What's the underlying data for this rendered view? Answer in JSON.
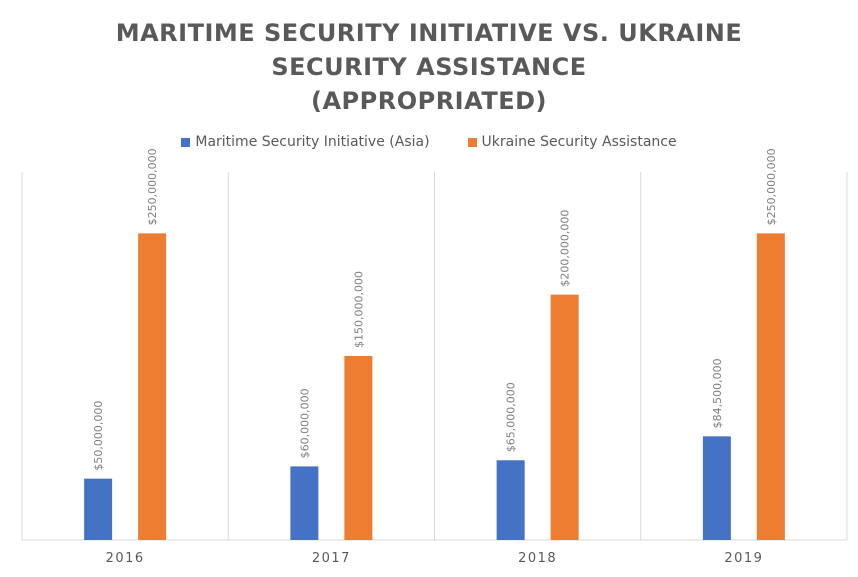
{
  "chart_data": {
    "type": "bar",
    "title_lines": [
      "MARITIME SECURITY INITIATIVE VS. UKRAINE",
      "SECURITY ASSISTANCE",
      "(APPROPRIATED)"
    ],
    "xlabel": "",
    "ylabel": "",
    "categories": [
      "2016",
      "2017",
      "2018",
      "2019"
    ],
    "series": [
      {
        "name": "Maritime Security Initiative (Asia)",
        "color": "#4472C4",
        "values": [
          50000000,
          60000000,
          65000000,
          84500000
        ],
        "labels": [
          "$50,000,000",
          "$60,000,000",
          "$65,000,000",
          "$84,500,000"
        ]
      },
      {
        "name": "Ukraine Security Assistance",
        "color": "#ED7D31",
        "values": [
          250000000,
          150000000,
          200000000,
          250000000
        ],
        "labels": [
          "$250,000,000",
          "$150,000,000",
          "$200,000,000",
          "$250,000,000"
        ]
      }
    ],
    "ylim": [
      0,
      300000000
    ],
    "grid": "vertical category separators",
    "legend_position": "top",
    "data_labels": "rotated above bars"
  }
}
